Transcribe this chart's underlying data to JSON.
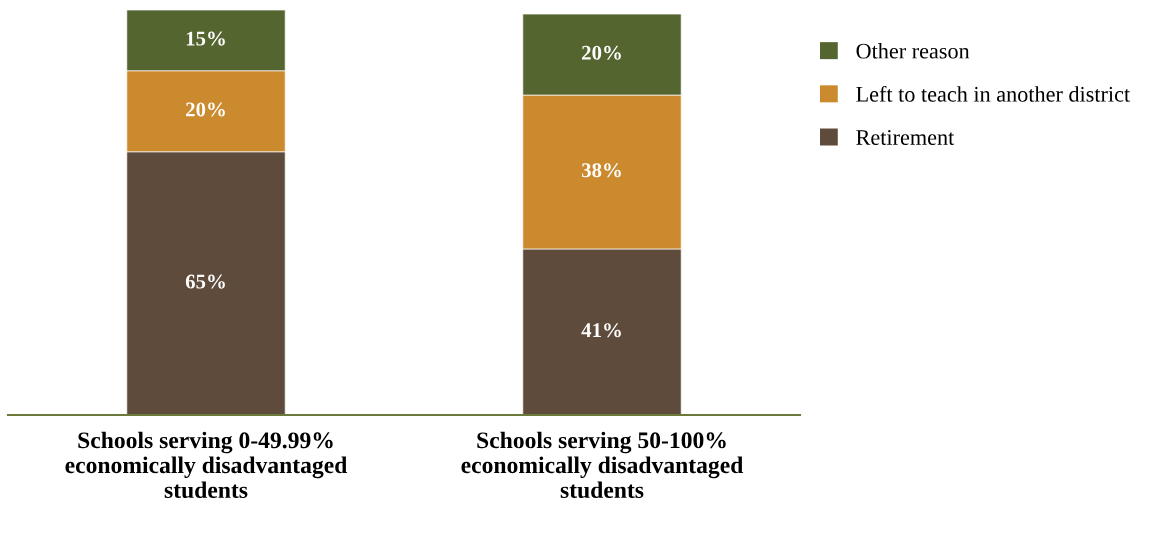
{
  "chart_data": {
    "type": "bar",
    "stacked": true,
    "categories": [
      "Schools serving 0-49.99%\neconomically disadvantaged\nstudents",
      "Schools serving 50-100%\neconomically disadvantaged\nstudents"
    ],
    "series": [
      {
        "name": "Retirement",
        "color": "#5e4b3c",
        "values": [
          65,
          41
        ],
        "value_labels": [
          "65%",
          "41%"
        ]
      },
      {
        "name": "Left to teach in another district",
        "color": "#cc8a2e",
        "values": [
          20,
          38
        ],
        "value_labels": [
          "20%",
          "38%"
        ]
      },
      {
        "name": "Other reason",
        "color": "#546530",
        "values": [
          15,
          20
        ],
        "value_labels": [
          "15%",
          "20%"
        ]
      }
    ],
    "legend": "top right",
    "grid": false
  }
}
